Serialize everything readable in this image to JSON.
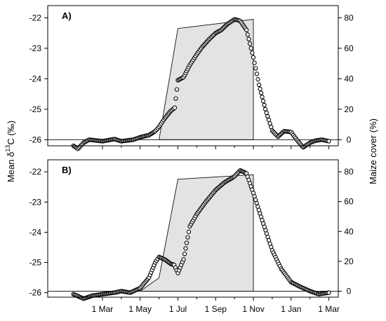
{
  "chart_data": [
    {
      "type": "scatter",
      "panel_label": "A)",
      "x_ticks": [
        "1 Mar",
        "1 May",
        "1 Jul",
        "1 Sep",
        "1 Nov",
        "1 Jan",
        "1 Mar"
      ],
      "y_ticks": [
        -22,
        -23,
        -24,
        -25,
        -26
      ],
      "y2_ticks": [
        80,
        60,
        40,
        20,
        0
      ],
      "ylim": [
        -26.2,
        -21.6
      ],
      "y2lim": [
        -4,
        88
      ],
      "ylabel": "Mean δ13C (‰)",
      "y2label": "Maize cover (%)",
      "maize_cover": {
        "points": [
          [
            "1 Jun",
            0
          ],
          [
            "1 Jul",
            73
          ],
          [
            "1 Nov",
            79
          ],
          [
            "1 Nov",
            0
          ]
        ]
      },
      "series": [
        {
          "values": [
            [
              "15 Jan",
              -26.2
            ],
            [
              "22 Jan",
              -26.3
            ],
            [
              "1 Feb",
              -26.1
            ],
            [
              "10 Feb",
              -26.0
            ],
            [
              "1 Mar",
              -26.05
            ],
            [
              "20 Mar",
              -25.98
            ],
            [
              "1 Apr",
              -26.05
            ],
            [
              "20 Apr",
              -26.0
            ],
            [
              "1 May",
              -25.92
            ],
            [
              "15 May",
              -25.85
            ],
            [
              "25 May",
              -25.72
            ],
            [
              "1 Jun",
              -25.58
            ],
            [
              "10 Jun",
              -25.3
            ],
            [
              "20 Jun",
              -25.05
            ],
            [
              "26 Jun",
              -24.95
            ],
            [
              "1 Jul",
              -24.05
            ],
            [
              "10 Jul",
              -23.95
            ],
            [
              "20 Jul",
              -23.55
            ],
            [
              "1 Aug",
              -23.2
            ],
            [
              "10 Aug",
              -22.95
            ],
            [
              "20 Aug",
              -22.72
            ],
            [
              "1 Sep",
              -22.5
            ],
            [
              "10 Sep",
              -22.4
            ],
            [
              "20 Sep",
              -22.2
            ],
            [
              "1 Oct",
              -22.05
            ],
            [
              "10 Oct",
              -22.1
            ],
            [
              "20 Oct",
              -22.4
            ],
            [
              "1 Nov",
              -23.3
            ],
            [
              "10 Nov",
              -24.2
            ],
            [
              "20 Nov",
              -25.0
            ],
            [
              "1 Dec",
              -25.7
            ],
            [
              "10 Dec",
              -25.9
            ],
            [
              "20 Dec",
              -25.72
            ],
            [
              "1 Jan",
              -25.75
            ],
            [
              "10 Jan",
              -26.0
            ],
            [
              "20 Jan",
              -26.25
            ],
            [
              "1 Feb",
              -26.1
            ],
            [
              "10 Feb",
              -26.03
            ],
            [
              "20 Feb",
              -26.0
            ],
            [
              "1 Mar",
              -26.05
            ]
          ]
        }
      ]
    },
    {
      "type": "scatter",
      "panel_label": "B)",
      "x_ticks": [
        "1 Mar",
        "1 May",
        "1 Jul",
        "1 Sep",
        "1 Nov",
        "1 Jan",
        "1 Mar"
      ],
      "y_ticks": [
        -22,
        -23,
        -24,
        -25,
        -26
      ],
      "y2_ticks": [
        80,
        60,
        40,
        20,
        0
      ],
      "ylim": [
        -26.15,
        -21.6
      ],
      "y2lim": [
        -4,
        88
      ],
      "ylabel": "Mean δ13C (‰)",
      "y2label": "Maize cover (%)",
      "maize_cover": {
        "points": [
          [
            "1 May",
            0
          ],
          [
            "1 Jun",
            9
          ],
          [
            "1 Jul",
            75
          ],
          [
            "1 Nov",
            78
          ],
          [
            "1 Nov",
            0
          ]
        ]
      },
      "series": [
        {
          "values": [
            [
              "15 Jan",
              -26.05
            ],
            [
              "1 Feb",
              -26.2
            ],
            [
              "15 Feb",
              -26.1
            ],
            [
              "1 Mar",
              -26.05
            ],
            [
              "20 Mar",
              -26.0
            ],
            [
              "1 Apr",
              -25.95
            ],
            [
              "15 Apr",
              -26.0
            ],
            [
              "1 May",
              -25.85
            ],
            [
              "15 May",
              -25.5
            ],
            [
              "25 May",
              -25.0
            ],
            [
              "1 Jun",
              -24.82
            ],
            [
              "10 Jun",
              -24.9
            ],
            [
              "20 Jun",
              -25.05
            ],
            [
              "25 Jun",
              -25.08
            ],
            [
              "1 Jul",
              -25.35
            ],
            [
              "10 Jul",
              -24.9
            ],
            [
              "20 Jul",
              -23.8
            ],
            [
              "1 Aug",
              -23.4
            ],
            [
              "15 Aug",
              -23.0
            ],
            [
              "1 Sep",
              -22.6
            ],
            [
              "15 Sep",
              -22.35
            ],
            [
              "1 Oct",
              -22.15
            ],
            [
              "10 Oct",
              -21.95
            ],
            [
              "20 Oct",
              -22.05
            ],
            [
              "1 Nov",
              -22.7
            ],
            [
              "15 Nov",
              -23.6
            ],
            [
              "1 Dec",
              -24.6
            ],
            [
              "15 Dec",
              -25.2
            ],
            [
              "1 Jan",
              -25.65
            ],
            [
              "15 Jan",
              -25.8
            ],
            [
              "1 Feb",
              -25.95
            ],
            [
              "15 Feb",
              -26.05
            ],
            [
              "1 Mar",
              -26.0
            ]
          ]
        }
      ]
    }
  ]
}
